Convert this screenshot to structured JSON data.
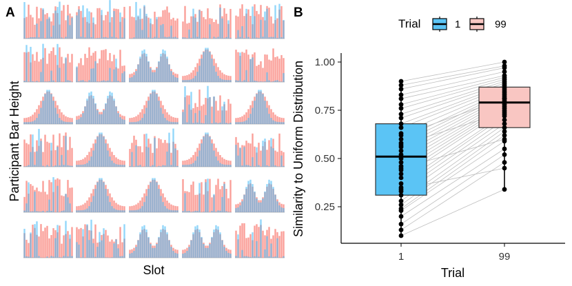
{
  "panel_a": {
    "letter": "A",
    "xlabel": "Slot",
    "ylabel": "Participant Bar Height",
    "rows": 6,
    "cols": 5,
    "bars_per_cell": 24,
    "colors": {
      "trial1": "#3ab6f5",
      "trial99": "#f8766d",
      "overlap": "#7b6f9e"
    }
  },
  "panel_b": {
    "letter": "B",
    "legend": {
      "title": "Trial",
      "labels": [
        "1",
        "99"
      ]
    },
    "colors": {
      "trial1": "#5bc4f5",
      "trial99": "#f9c6c2",
      "line": "#bdbdbd"
    }
  },
  "chart_data": {
    "type": "box",
    "title": "",
    "xlabel": "Trial",
    "ylabel": "Similarity to Uniform Distribution",
    "categories": [
      "1",
      "99"
    ],
    "ylim": [
      0.1,
      1.05
    ],
    "yticks": [
      "0.25",
      "0.50",
      "0.75",
      "1.00"
    ],
    "boxes": [
      {
        "category": "1",
        "lower_whisker": 0.1,
        "q1": 0.31,
        "median": 0.51,
        "q3": 0.68,
        "upper_whisker": 0.9
      },
      {
        "category": "99",
        "lower_whisker": 0.34,
        "q1": 0.66,
        "median": 0.79,
        "q3": 0.87,
        "upper_whisker": 1.0
      }
    ],
    "paired_points": [
      [
        0.1,
        0.34
      ],
      [
        0.13,
        0.48
      ],
      [
        0.16,
        0.52
      ],
      [
        0.2,
        0.55
      ],
      [
        0.23,
        0.59
      ],
      [
        0.24,
        0.62
      ],
      [
        0.26,
        0.64
      ],
      [
        0.28,
        0.66
      ],
      [
        0.31,
        0.68
      ],
      [
        0.33,
        0.7
      ],
      [
        0.35,
        0.72
      ],
      [
        0.37,
        0.73
      ],
      [
        0.4,
        0.75
      ],
      [
        0.42,
        0.76
      ],
      [
        0.44,
        0.77
      ],
      [
        0.46,
        0.78
      ],
      [
        0.48,
        0.79
      ],
      [
        0.5,
        0.8
      ],
      [
        0.52,
        0.81
      ],
      [
        0.54,
        0.82
      ],
      [
        0.56,
        0.83
      ],
      [
        0.58,
        0.84
      ],
      [
        0.6,
        0.85
      ],
      [
        0.63,
        0.86
      ],
      [
        0.66,
        0.87
      ],
      [
        0.68,
        0.88
      ],
      [
        0.71,
        0.89
      ],
      [
        0.73,
        0.9
      ],
      [
        0.76,
        0.91
      ],
      [
        0.78,
        0.92
      ],
      [
        0.81,
        0.93
      ],
      [
        0.83,
        0.95
      ],
      [
        0.86,
        0.97
      ],
      [
        0.88,
        0.98
      ],
      [
        0.9,
        1.0
      ],
      [
        0.57,
        0.74
      ],
      [
        0.45,
        0.6
      ],
      [
        0.34,
        0.45
      ],
      [
        0.62,
        0.81
      ]
    ]
  }
}
